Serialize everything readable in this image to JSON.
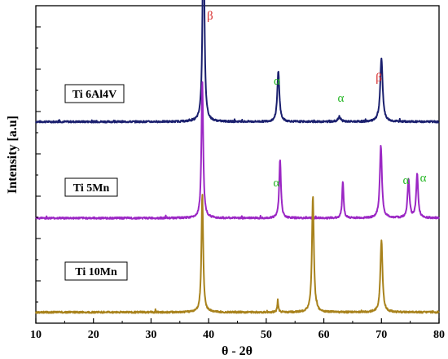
{
  "chart_data": {
    "type": "line",
    "xlabel": "θ - 2θ",
    "ylabel": "Intensity [a.u]",
    "xlim": [
      10,
      80
    ],
    "x_ticks": [
      "10",
      "20",
      "30",
      "40",
      "50",
      "60",
      "70",
      "80"
    ],
    "y_ticks_shown": false,
    "series": [
      {
        "name": "Ti 6Al4V",
        "color": "#1a1f6e",
        "baseline": 0.92,
        "peaks": [
          {
            "x": 39.1,
            "height": 1.0,
            "width": 0.18
          },
          {
            "x": 52.1,
            "height": 0.23,
            "width": 0.22
          },
          {
            "x": 62.7,
            "height": 0.02,
            "width": 0.3
          },
          {
            "x": 70.0,
            "height": 0.29,
            "width": 0.25
          }
        ],
        "annotations": [
          {
            "text": "β",
            "x": 39.7,
            "color": "#d62828"
          },
          {
            "text": "α",
            "x": 51.3,
            "color": "#22b622"
          },
          {
            "text": "α",
            "x": 62.4,
            "color": "#22b622"
          },
          {
            "text": "β",
            "x": 69.0,
            "color": "#d62828"
          }
        ]
      },
      {
        "name": "Ti 5Mn",
        "color": "#9b27c4",
        "baseline": 0.48,
        "peaks": [
          {
            "x": 38.9,
            "height": 0.63,
            "width": 0.18
          },
          {
            "x": 52.4,
            "height": 0.27,
            "width": 0.18
          },
          {
            "x": 63.3,
            "height": 0.17,
            "width": 0.15
          },
          {
            "x": 69.9,
            "height": 0.33,
            "width": 0.22
          },
          {
            "x": 74.7,
            "height": 0.18,
            "width": 0.2
          },
          {
            "x": 76.2,
            "height": 0.2,
            "width": 0.2
          }
        ],
        "annotations": [
          {
            "text": "α",
            "x": 51.2,
            "color": "#22b622"
          },
          {
            "text": "α",
            "x": 73.7,
            "color": "#22b622"
          },
          {
            "text": "α",
            "x": 76.7,
            "color": "#22b622"
          }
        ]
      },
      {
        "name": "Ti 10Mn",
        "color": "#a8821c",
        "baseline": 0.05,
        "peaks": [
          {
            "x": 38.9,
            "height": 0.54,
            "width": 0.18
          },
          {
            "x": 52.0,
            "height": 0.05,
            "width": 0.12
          },
          {
            "x": 58.1,
            "height": 0.53,
            "width": 0.2
          },
          {
            "x": 70.0,
            "height": 0.33,
            "width": 0.22
          }
        ],
        "annotations": []
      }
    ]
  }
}
